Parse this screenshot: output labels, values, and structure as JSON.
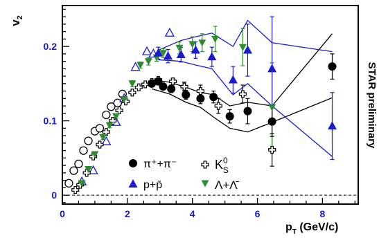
{
  "chart_data": {
    "type": "scatter",
    "ylabel_main": "v",
    "ylabel_sub": "2",
    "xlabel_main": "p",
    "xlabel_sub": "T",
    "xlabel_unit": " (GeV/c)",
    "side_label": "STAR preliminary",
    "xlim": [
      0,
      9.1
    ],
    "ylim": [
      -0.012,
      0.255
    ],
    "x_ticks": [
      {
        "v": 0,
        "label": "0"
      },
      {
        "v": 2,
        "label": "2"
      },
      {
        "v": 4,
        "label": "4"
      },
      {
        "v": 6,
        "label": "6"
      },
      {
        "v": 8,
        "label": "8"
      }
    ],
    "y_ticks": [
      {
        "v": 0,
        "label": "0"
      },
      {
        "v": 0.1,
        "label": "0.1"
      },
      {
        "v": 0.2,
        "label": "0.2"
      }
    ],
    "grid": false,
    "legend_position": "bottom-center",
    "colors": {
      "axis_numbers": "#1a1ad0",
      "pion": "#000000",
      "proton": "#1a1ad0",
      "lambda": "#2e8b2e",
      "kaon": "#000000"
    },
    "series": [
      {
        "key": "pion",
        "name": "π⁺+π⁻",
        "marker": "circle-filled",
        "color": "#000000",
        "points": [
          {
            "x": 2.75,
            "y": 0.15,
            "e": 0.004
          },
          {
            "x": 2.95,
            "y": 0.153,
            "e": 0.004
          },
          {
            "x": 3.1,
            "y": 0.146,
            "e": 0.004
          },
          {
            "x": 3.35,
            "y": 0.143,
            "e": 0.005
          },
          {
            "x": 3.8,
            "y": 0.135,
            "e": 0.006
          },
          {
            "x": 4.25,
            "y": 0.13,
            "e": 0.007
          },
          {
            "x": 4.65,
            "y": 0.132,
            "e": 0.008
          },
          {
            "x": 5.15,
            "y": 0.106,
            "e": 0.009
          },
          {
            "x": 5.7,
            "y": 0.113,
            "e": 0.017
          },
          {
            "x": 6.45,
            "y": 0.099,
            "e": 0.02
          },
          {
            "x": 8.3,
            "y": 0.173,
            "e": 0.017
          }
        ]
      },
      {
        "key": "proton",
        "name": "p+p̄",
        "marker": "triangle-filled",
        "color": "#1a1ad0",
        "points": [
          {
            "x": 2.95,
            "y": 0.191,
            "e": 0.008
          },
          {
            "x": 3.25,
            "y": 0.187,
            "e": 0.009
          },
          {
            "x": 3.65,
            "y": 0.189,
            "e": 0.01
          },
          {
            "x": 4.1,
            "y": 0.195,
            "e": 0.011
          },
          {
            "x": 4.6,
            "y": 0.186,
            "e": 0.013
          },
          {
            "x": 5.25,
            "y": 0.155,
            "e": 0.018
          },
          {
            "x": 5.7,
            "y": 0.195,
            "e": 0.035
          },
          {
            "x": 6.45,
            "y": 0.17,
            "e": 0.07
          },
          {
            "x": 8.3,
            "y": 0.093,
            "e": 0.045
          }
        ]
      },
      {
        "key": "lambda",
        "name": "Λ+Λ̄",
        "marker": "triangle-down-filled",
        "color": "#2e8b2e",
        "points": [
          {
            "x": 0.6,
            "y": 0.016,
            "e": 0.002
          },
          {
            "x": 0.8,
            "y": 0.035,
            "e": 0.003
          },
          {
            "x": 1.0,
            "y": 0.055,
            "e": 0.003
          },
          {
            "x": 1.25,
            "y": 0.078,
            "e": 0.003
          },
          {
            "x": 1.45,
            "y": 0.094,
            "e": 0.003
          },
          {
            "x": 1.65,
            "y": 0.106,
            "e": 0.003
          },
          {
            "x": 1.9,
            "y": 0.129,
            "e": 0.003
          },
          {
            "x": 2.15,
            "y": 0.15,
            "e": 0.004
          },
          {
            "x": 2.4,
            "y": 0.175,
            "e": 0.004
          },
          {
            "x": 2.65,
            "y": 0.18,
            "e": 0.005
          },
          {
            "x": 2.9,
            "y": 0.185,
            "e": 0.005
          },
          {
            "x": 3.1,
            "y": 0.191,
            "e": 0.006
          },
          {
            "x": 3.6,
            "y": 0.198,
            "e": 0.008
          },
          {
            "x": 4.0,
            "y": 0.203,
            "e": 0.01
          },
          {
            "x": 4.3,
            "y": 0.205,
            "e": 0.012
          },
          {
            "x": 4.7,
            "y": 0.21,
            "e": 0.017
          },
          {
            "x": 5.55,
            "y": 0.199,
            "e": 0.025
          },
          {
            "x": 6.45,
            "y": 0.118,
            "e": 0.06
          }
        ]
      },
      {
        "key": "kaon",
        "name": "K⁰S",
        "label_main": "K",
        "label_sup": "0",
        "label_sub": "S",
        "marker": "cross-open",
        "color": "#000000",
        "points": [
          {
            "x": 0.4,
            "y": 0.007,
            "e": 0.0
          },
          {
            "x": 0.55,
            "y": 0.014,
            "e": 0.0
          },
          {
            "x": 0.75,
            "y": 0.03,
            "e": 0.0
          },
          {
            "x": 0.95,
            "y": 0.052,
            "e": 0.0
          },
          {
            "x": 1.15,
            "y": 0.068,
            "e": 0.0
          },
          {
            "x": 1.35,
            "y": 0.085,
            "e": 0.0
          },
          {
            "x": 1.55,
            "y": 0.1,
            "e": 0.0
          },
          {
            "x": 1.75,
            "y": 0.114,
            "e": 0.0
          },
          {
            "x": 1.95,
            "y": 0.126,
            "e": 0.0
          },
          {
            "x": 2.15,
            "y": 0.138,
            "e": 0.0
          },
          {
            "x": 2.35,
            "y": 0.145,
            "e": 0.0
          },
          {
            "x": 2.55,
            "y": 0.149,
            "e": 0.0
          },
          {
            "x": 2.75,
            "y": 0.152,
            "e": 0.0
          },
          {
            "x": 2.95,
            "y": 0.155,
            "e": 0.0
          },
          {
            "x": 3.4,
            "y": 0.153,
            "e": 0.004
          },
          {
            "x": 3.75,
            "y": 0.146,
            "e": 0.006
          },
          {
            "x": 4.25,
            "y": 0.14,
            "e": 0.008
          },
          {
            "x": 4.8,
            "y": 0.12,
            "e": 0.01
          },
          {
            "x": 5.55,
            "y": 0.136,
            "e": 0.012
          },
          {
            "x": 6.45,
            "y": 0.061,
            "e": 0.022
          }
        ]
      },
      {
        "key": "pion_open",
        "name": "",
        "marker": "circle-open",
        "color": "#000000",
        "points": [
          {
            "x": 0.2,
            "y": 0.016
          },
          {
            "x": 0.35,
            "y": 0.033
          },
          {
            "x": 0.5,
            "y": 0.042
          },
          {
            "x": 0.65,
            "y": 0.06
          },
          {
            "x": 0.8,
            "y": 0.073
          },
          {
            "x": 1.0,
            "y": 0.086
          },
          {
            "x": 1.15,
            "y": 0.09
          },
          {
            "x": 1.35,
            "y": 0.108
          },
          {
            "x": 1.5,
            "y": 0.119
          },
          {
            "x": 1.7,
            "y": 0.124
          },
          {
            "x": 1.85,
            "y": 0.136
          }
        ]
      },
      {
        "key": "proton_open",
        "name": "",
        "marker": "triangle-open",
        "color": "#1a1ad0",
        "points": [
          {
            "x": 0.6,
            "y": 0.018
          },
          {
            "x": 0.95,
            "y": 0.033
          },
          {
            "x": 1.35,
            "y": 0.072
          },
          {
            "x": 1.65,
            "y": 0.098
          },
          {
            "x": 1.9,
            "y": 0.13
          },
          {
            "x": 2.25,
            "y": 0.172
          },
          {
            "x": 2.6,
            "y": 0.193
          },
          {
            "x": 2.8,
            "y": 0.19
          },
          {
            "x": 3.3,
            "y": 0.218
          }
        ]
      }
    ],
    "bands": [
      {
        "key": "pion_band",
        "color": "#000000",
        "upper": [
          [
            2.75,
            0.155
          ],
          [
            3.3,
            0.152
          ],
          [
            3.8,
            0.145
          ],
          [
            4.25,
            0.138
          ],
          [
            4.65,
            0.135
          ],
          [
            5.15,
            0.12
          ],
          [
            5.7,
            0.125
          ],
          [
            6.45,
            0.12
          ],
          [
            8.3,
            0.217
          ]
        ],
        "lower": [
          [
            2.75,
            0.143
          ],
          [
            3.3,
            0.136
          ],
          [
            3.8,
            0.125
          ],
          [
            4.25,
            0.118
          ],
          [
            4.65,
            0.105
          ],
          [
            5.15,
            0.09
          ],
          [
            5.7,
            0.085
          ],
          [
            6.45,
            0.098
          ],
          [
            8.3,
            0.131
          ]
        ]
      },
      {
        "key": "proton_band",
        "color": "#1a1ad0",
        "upper": [
          [
            2.95,
            0.195
          ],
          [
            3.65,
            0.208
          ],
          [
            4.1,
            0.213
          ],
          [
            4.6,
            0.218
          ],
          [
            5.25,
            0.2
          ],
          [
            5.7,
            0.235
          ],
          [
            6.45,
            0.205
          ],
          [
            8.3,
            0.193
          ]
        ],
        "lower": [
          [
            2.95,
            0.182
          ],
          [
            3.65,
            0.18
          ],
          [
            4.1,
            0.175
          ],
          [
            4.6,
            0.17
          ],
          [
            5.25,
            0.135
          ],
          [
            5.7,
            0.15
          ],
          [
            6.45,
            0.12
          ],
          [
            8.3,
            0.052
          ]
        ]
      }
    ],
    "zero_line": {
      "y": 0,
      "style": "dashed"
    }
  }
}
